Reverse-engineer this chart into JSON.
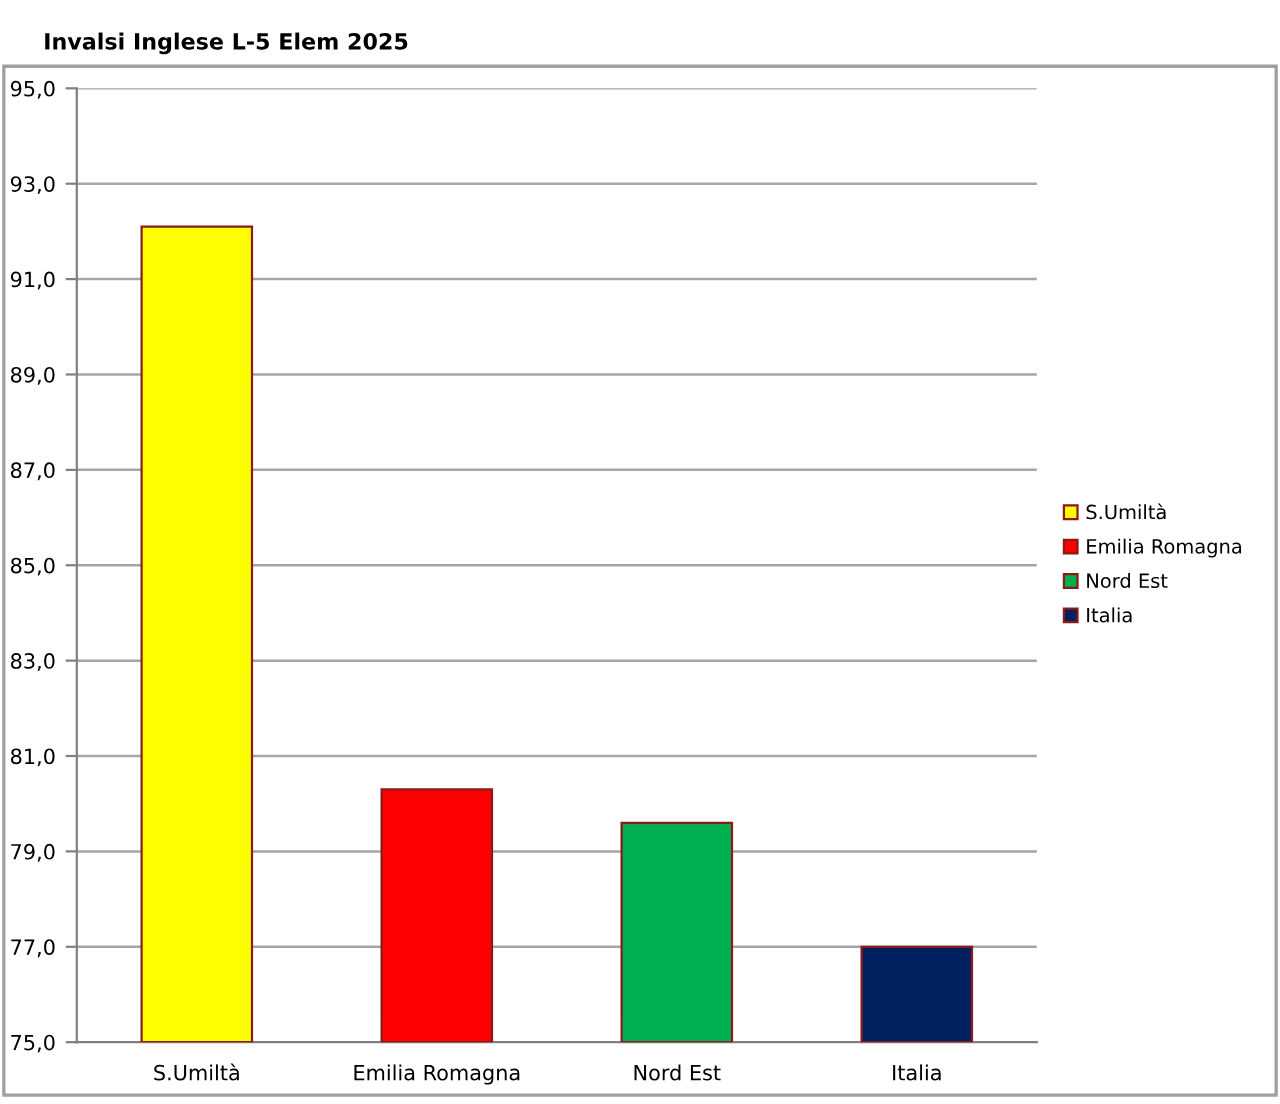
{
  "chart_data": {
    "type": "bar",
    "title": "Invalsi Inglese L-5 Elem 2025",
    "categories": [
      "S.Umiltà",
      "Emilia Romagna",
      "Nord Est",
      "Italia"
    ],
    "stacked": true,
    "series": [
      {
        "name": "S.Umiltà",
        "color": "#ffff00",
        "values": [
          92.1,
          null,
          null,
          null
        ]
      },
      {
        "name": "Emilia Romagna",
        "color": "#ff0000",
        "values": [
          null,
          80.3,
          null,
          null
        ]
      },
      {
        "name": "Nord Est",
        "color": "#00b050",
        "values": [
          null,
          null,
          79.6,
          null
        ]
      },
      {
        "name": "Italia",
        "color": "#002060",
        "values": [
          null,
          null,
          null,
          77.0
        ]
      }
    ],
    "ylim": [
      75,
      95
    ],
    "yticks": [
      {
        "value": 75,
        "label": "75,0"
      },
      {
        "value": 77,
        "label": "77,0"
      },
      {
        "value": 79,
        "label": "79,0"
      },
      {
        "value": 81,
        "label": "81,0"
      },
      {
        "value": 83,
        "label": "83,0"
      },
      {
        "value": 85,
        "label": "85,0"
      },
      {
        "value": 87,
        "label": "87,0"
      },
      {
        "value": 89,
        "label": "89,0"
      },
      {
        "value": 91,
        "label": "91,0"
      },
      {
        "value": 93,
        "label": "93,0"
      },
      {
        "value": 95,
        "label": "95,0"
      }
    ],
    "grid": "y",
    "legend": "right"
  }
}
